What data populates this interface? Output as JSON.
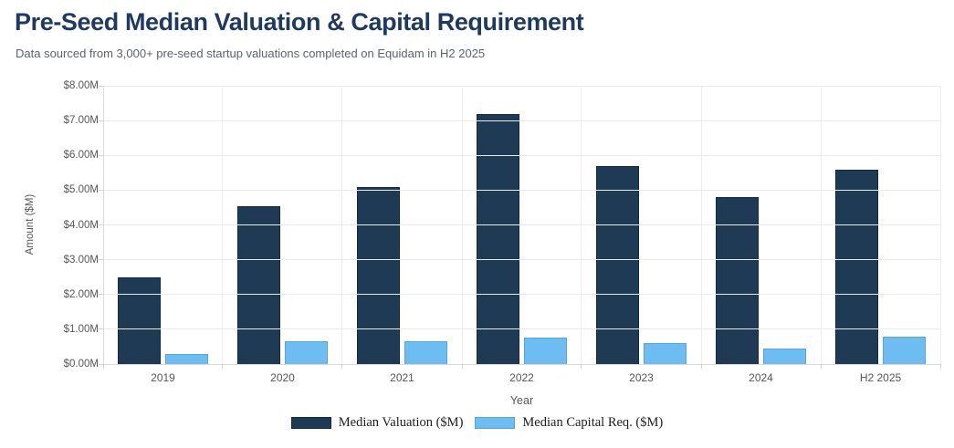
{
  "header": {
    "title": "Pre-Seed Median Valuation & Capital Requirement",
    "subtitle": "Data sourced from 3,000+ pre-seed startup valuations completed on Equidam in H2 2025"
  },
  "colors": {
    "title_text": "#1e3a5f",
    "valuation_bar": "#1f3a54",
    "capital_bar": "#6dbdf2",
    "gridline": "#e9eaeb",
    "axis_text": "#53575a"
  },
  "chart_data": {
    "type": "bar",
    "title": "Pre-Seed Median Valuation & Capital Requirement",
    "subtitle": "Data sourced from 3,000+ pre-seed startup valuations completed on Equidam in H2 2025",
    "categories": [
      "2019",
      "2020",
      "2021",
      "2022",
      "2023",
      "2024",
      "H2 2025"
    ],
    "series": [
      {
        "name": "Median Valuation ($M)",
        "key": "median-valuation",
        "color": "#1f3a54",
        "values": [
          2.5,
          4.55,
          5.1,
          7.2,
          5.7,
          4.8,
          5.6
        ]
      },
      {
        "name": "Median Capital Req. ($M)",
        "key": "median-capital-req",
        "color": "#6dbdf2",
        "values": [
          0.3,
          0.65,
          0.65,
          0.75,
          0.6,
          0.45,
          0.8
        ]
      }
    ],
    "xlabel": "Year",
    "ylabel": "Amount ($M)",
    "ylim": [
      0,
      8
    ],
    "ytick_step": 1,
    "ytick_labels": [
      "$8.00M",
      "$7.00M",
      "$6.00M",
      "$5.00M",
      "$4.00M",
      "$3.00M",
      "$2.00M",
      "$1.00M",
      "$0.00M"
    ],
    "grid": true,
    "legend_position": "bottom"
  }
}
